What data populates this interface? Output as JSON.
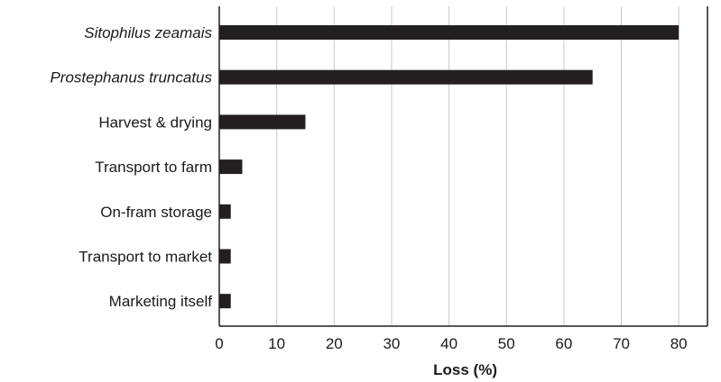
{
  "chart_data": {
    "type": "bar",
    "orientation": "horizontal",
    "categories": [
      "Sitophilus zeamais",
      "Prostephanus truncatus",
      "Harvest & drying",
      "Transport to farm",
      "On-fram storage",
      "Transport to market",
      "Marketing itself"
    ],
    "italic_categories": [
      "Sitophilus zeamais",
      "Prostephanus truncatus"
    ],
    "values": [
      80,
      65,
      15,
      4,
      2,
      2,
      2
    ],
    "xlabel": "Loss (%)",
    "ylabel": "",
    "title": "",
    "xlim": [
      0,
      85
    ],
    "xticks": [
      0,
      10,
      20,
      30,
      40,
      50,
      60,
      70,
      80
    ],
    "grid": "vertical",
    "bar_color": "#231f20",
    "grid_color": "#c8c8c8",
    "axis_color": "#231f20"
  }
}
